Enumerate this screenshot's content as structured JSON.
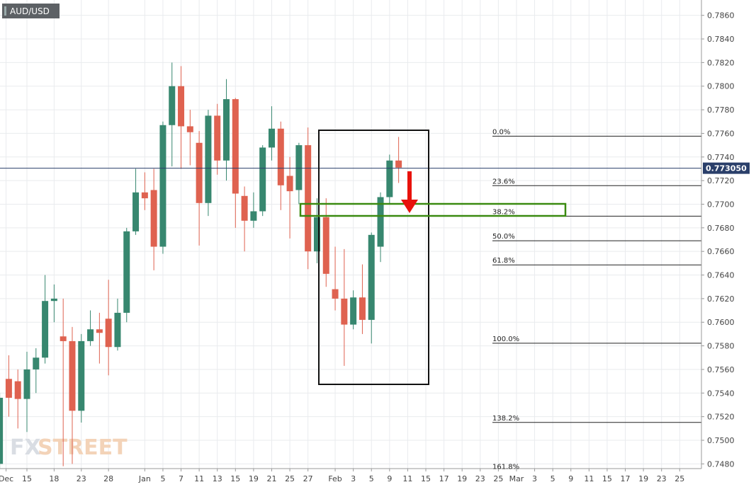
{
  "chart_data": {
    "type": "candlestick",
    "title": "AUD/USD",
    "watermark": [
      "FX",
      "STREET"
    ],
    "up_color": "#37876f",
    "down_color": "#df6250",
    "grid": true,
    "x": [
      -2,
      -1,
      0,
      1,
      2,
      3,
      4,
      5,
      6,
      7,
      8,
      9,
      10,
      11,
      12,
      13,
      14,
      15,
      16,
      17,
      18,
      19,
      20,
      21,
      22,
      23,
      24,
      25,
      26,
      27,
      28,
      29,
      30,
      31,
      32,
      33,
      34,
      35,
      36,
      37,
      38,
      39,
      40,
      41,
      42
    ],
    "open": [
      0.748,
      0.7552,
      0.755,
      0.7535,
      0.756,
      0.757,
      0.7618,
      0.7588,
      0.7584,
      0.7525,
      0.7584,
      0.7594,
      0.7603,
      0.7579,
      0.7608,
      0.7677,
      0.771,
      0.7712,
      0.7664,
      0.7767,
      0.78,
      0.7766,
      0.7752,
      0.7701,
      0.7775,
      0.7737,
      0.7789,
      0.7707,
      0.7686,
      0.7694,
      0.7748,
      0.7764,
      0.7724,
      0.7712,
      0.775,
      0.766,
      0.7689,
      0.7628,
      0.762,
      0.7598,
      0.7621,
      0.7602,
      0.7664,
      0.7706,
      0.7737
    ],
    "high": [
      0.754,
      0.7572,
      0.756,
      0.7575,
      0.7578,
      0.764,
      0.7632,
      0.762,
      0.7596,
      0.759,
      0.761,
      0.7608,
      0.7636,
      0.762,
      0.768,
      0.773,
      0.7727,
      0.773,
      0.777,
      0.782,
      0.7817,
      0.778,
      0.7762,
      0.778,
      0.7785,
      0.7806,
      0.779,
      0.7715,
      0.771,
      0.775,
      0.7783,
      0.777,
      0.774,
      0.7752,
      0.7765,
      0.7705,
      0.7705,
      0.7664,
      0.7662,
      0.7627,
      0.7649,
      0.7676,
      0.771,
      0.7742,
      0.7757
    ],
    "low": [
      0.7476,
      0.752,
      0.751,
      0.7507,
      0.754,
      0.7565,
      0.76,
      0.7478,
      0.748,
      0.7515,
      0.758,
      0.7565,
      0.7555,
      0.7576,
      0.76,
      0.7674,
      0.7695,
      0.7644,
      0.7658,
      0.7732,
      0.773,
      0.7733,
      0.7665,
      0.769,
      0.7725,
      0.772,
      0.768,
      0.766,
      0.768,
      0.769,
      0.7737,
      0.7695,
      0.7671,
      0.77,
      0.7645,
      0.765,
      0.763,
      0.761,
      0.7563,
      0.7594,
      0.759,
      0.7582,
      0.7651,
      0.77,
      0.7718
    ],
    "close": [
      0.7536,
      0.7536,
      0.7535,
      0.756,
      0.757,
      0.7618,
      0.762,
      0.7584,
      0.7525,
      0.7584,
      0.7594,
      0.7591,
      0.7579,
      0.7608,
      0.7677,
      0.771,
      0.7705,
      0.7664,
      0.7767,
      0.78,
      0.7766,
      0.7761,
      0.7701,
      0.7775,
      0.7737,
      0.7789,
      0.7709,
      0.7686,
      0.7694,
      0.7748,
      0.7764,
      0.7716,
      0.7711,
      0.775,
      0.766,
      0.7689,
      0.7641,
      0.762,
      0.7598,
      0.7621,
      0.7602,
      0.7674,
      0.7706,
      0.7737,
      0.7731
    ],
    "xlim": [
      -1.97,
      75.4
    ],
    "ylim": [
      0.7476,
      0.7873
    ],
    "xticks": [
      {
        "value": -1.3,
        "label": "Dec"
      },
      {
        "value": 1,
        "label": "15"
      },
      {
        "value": 4,
        "label": "18"
      },
      {
        "value": 7,
        "label": "23"
      },
      {
        "value": 10,
        "label": "28"
      },
      {
        "value": 14,
        "label": "Jan"
      },
      {
        "value": 16,
        "label": "5"
      },
      {
        "value": 18,
        "label": "7"
      },
      {
        "value": 20,
        "label": "11"
      },
      {
        "value": 22,
        "label": "13"
      },
      {
        "value": 24,
        "label": "15"
      },
      {
        "value": 26,
        "label": "19"
      },
      {
        "value": 28,
        "label": "21"
      },
      {
        "value": 30,
        "label": "25"
      },
      {
        "value": 32,
        "label": "27"
      },
      {
        "value": 35,
        "label": "Feb"
      },
      {
        "value": 37,
        "label": "3"
      },
      {
        "value": 39,
        "label": "5"
      },
      {
        "value": 41,
        "label": "9"
      },
      {
        "value": 43,
        "label": "11"
      },
      {
        "value": 45,
        "label": "15"
      },
      {
        "value": 47,
        "label": "17"
      },
      {
        "value": 49,
        "label": "19"
      },
      {
        "value": 51,
        "label": "23"
      },
      {
        "value": 53,
        "label": "25"
      },
      {
        "value": 55,
        "label": "Mar"
      },
      {
        "value": 57,
        "label": "3"
      },
      {
        "value": 59,
        "label": "5"
      },
      {
        "value": 61,
        "label": "9"
      },
      {
        "value": 63,
        "label": "11"
      },
      {
        "value": 65,
        "label": "15"
      },
      {
        "value": 67,
        "label": "17"
      },
      {
        "value": 69,
        "label": "19"
      },
      {
        "value": 71,
        "label": "23"
      },
      {
        "value": 73,
        "label": "25"
      }
    ],
    "yticks": [
      {
        "value": 0.748,
        "label": "0.7480"
      },
      {
        "value": 0.75,
        "label": "0.7500"
      },
      {
        "value": 0.752,
        "label": "0.7520"
      },
      {
        "value": 0.754,
        "label": "0.7540"
      },
      {
        "value": 0.756,
        "label": "0.7560"
      },
      {
        "value": 0.758,
        "label": "0.7580"
      },
      {
        "value": 0.76,
        "label": "0.7600"
      },
      {
        "value": 0.762,
        "label": "0.7620"
      },
      {
        "value": 0.764,
        "label": "0.7640"
      },
      {
        "value": 0.766,
        "label": "0.7660"
      },
      {
        "value": 0.768,
        "label": "0.7680"
      },
      {
        "value": 0.77,
        "label": "0.7700"
      },
      {
        "value": 0.772,
        "label": "0.7720"
      },
      {
        "value": 0.774,
        "label": "0.7740"
      },
      {
        "value": 0.776,
        "label": "0.7760"
      },
      {
        "value": 0.778,
        "label": "0.7780"
      },
      {
        "value": 0.78,
        "label": "0.7800"
      },
      {
        "value": 0.782,
        "label": "0.7820"
      },
      {
        "value": 0.784,
        "label": "0.7840"
      },
      {
        "value": 0.786,
        "label": "0.7860"
      }
    ],
    "current_price": {
      "value": 0.77305,
      "label": "0.773050"
    },
    "fib_levels": [
      {
        "value": 0.77576,
        "label": "0.0%"
      },
      {
        "value": 0.77157,
        "label": "23.6%"
      },
      {
        "value": 0.76899,
        "label": "38.2%"
      },
      {
        "value": 0.7669,
        "label": "50.0%"
      },
      {
        "value": 0.76486,
        "label": "61.8%"
      },
      {
        "value": 0.75822,
        "label": "100.0%"
      },
      {
        "value": 0.75151,
        "label": "138.2%"
      },
      {
        "value": 0.7474,
        "label": "161.8%"
      }
    ]
  }
}
